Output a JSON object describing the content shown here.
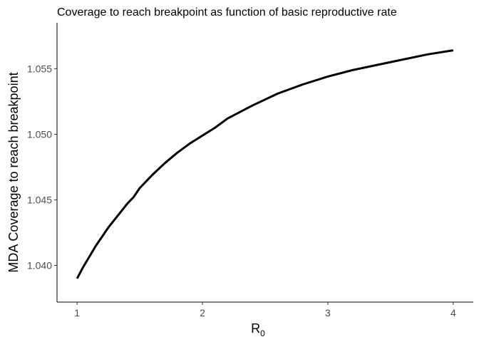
{
  "chart_data": {
    "type": "line",
    "title": "Coverage to reach breakpoint as function of basic reproductive rate",
    "xlabel": {
      "main": "R",
      "subscript": "0"
    },
    "ylabel": "MDA Coverage to reach breakpoint",
    "xlim": [
      0.84,
      4.16
    ],
    "ylim": [
      1.0372,
      1.0585
    ],
    "x_ticks": [
      {
        "value": 1,
        "label": "1"
      },
      {
        "value": 2,
        "label": "2"
      },
      {
        "value": 3,
        "label": "3"
      },
      {
        "value": 4,
        "label": "4"
      }
    ],
    "y_ticks": [
      {
        "value": 1.04,
        "label": "1.040"
      },
      {
        "value": 1.045,
        "label": "1.045"
      },
      {
        "value": 1.05,
        "label": "1.050"
      },
      {
        "value": 1.055,
        "label": "1.055"
      }
    ],
    "grid": false,
    "legend": "none",
    "line_color": "#000000",
    "series": [
      {
        "x": [
          1.0,
          1.05,
          1.1,
          1.15,
          1.2,
          1.25,
          1.3,
          1.35,
          1.4,
          1.45,
          1.5,
          1.6,
          1.7,
          1.8,
          1.9,
          2.0,
          2.1,
          2.2,
          2.4,
          2.6,
          2.8,
          3.0,
          3.2,
          3.4,
          3.6,
          3.8,
          4.0
        ],
        "y": [
          1.039,
          1.0399,
          1.0407,
          1.0415,
          1.0422,
          1.0429,
          1.0435,
          1.0441,
          1.0447,
          1.0452,
          1.0459,
          1.0469,
          1.0478,
          1.0486,
          1.0493,
          1.0499,
          1.0505,
          1.0512,
          1.0522,
          1.0531,
          1.0538,
          1.0544,
          1.0549,
          1.0553,
          1.0557,
          1.0561,
          1.0564
        ]
      }
    ]
  }
}
